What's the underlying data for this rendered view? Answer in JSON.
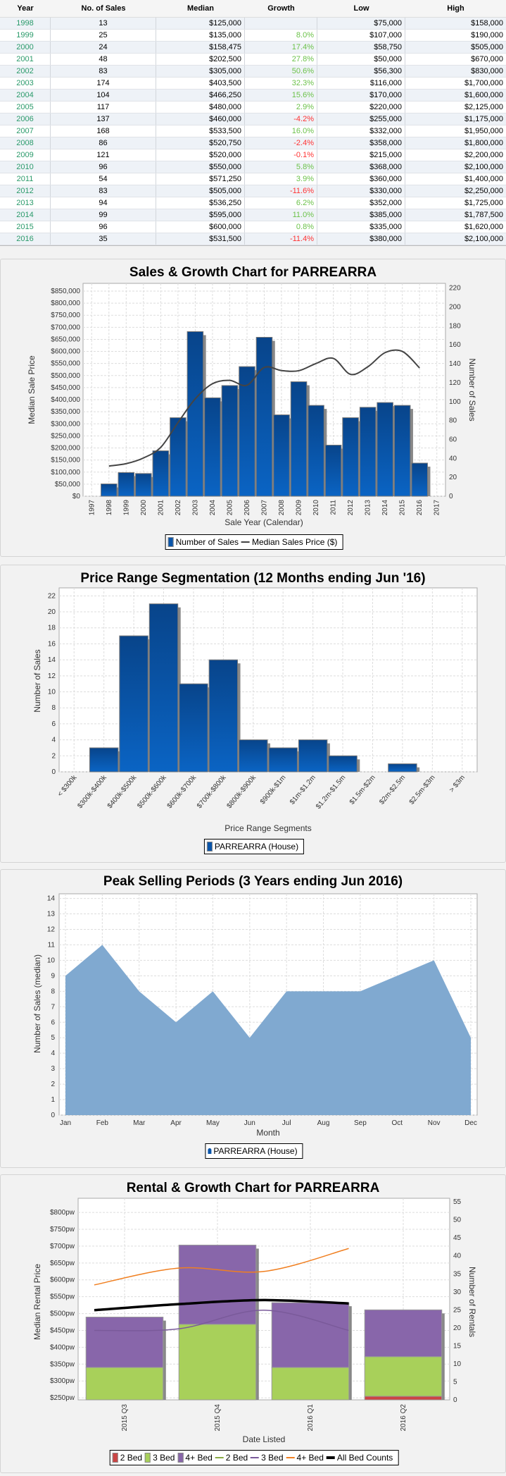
{
  "table": {
    "headers": [
      "Year",
      "No. of Sales",
      "Median",
      "Growth",
      "Low",
      "High"
    ],
    "rows": [
      {
        "year": "1998",
        "sales": "13",
        "median": "$125,000",
        "growth": "",
        "low": "$75,000",
        "high": "$158,000"
      },
      {
        "year": "1999",
        "sales": "25",
        "median": "$135,000",
        "growth": "8.0%",
        "low": "$107,000",
        "high": "$190,000"
      },
      {
        "year": "2000",
        "sales": "24",
        "median": "$158,475",
        "growth": "17.4%",
        "low": "$58,750",
        "high": "$505,000"
      },
      {
        "year": "2001",
        "sales": "48",
        "median": "$202,500",
        "growth": "27.8%",
        "low": "$50,000",
        "high": "$670,000"
      },
      {
        "year": "2002",
        "sales": "83",
        "median": "$305,000",
        "growth": "50.6%",
        "low": "$56,300",
        "high": "$830,000"
      },
      {
        "year": "2003",
        "sales": "174",
        "median": "$403,500",
        "growth": "32.3%",
        "low": "$116,000",
        "high": "$1,700,000"
      },
      {
        "year": "2004",
        "sales": "104",
        "median": "$466,250",
        "growth": "15.6%",
        "low": "$170,000",
        "high": "$1,600,000"
      },
      {
        "year": "2005",
        "sales": "117",
        "median": "$480,000",
        "growth": "2.9%",
        "low": "$220,000",
        "high": "$2,125,000"
      },
      {
        "year": "2006",
        "sales": "137",
        "median": "$460,000",
        "growth": "-4.2%",
        "low": "$255,000",
        "high": "$1,175,000"
      },
      {
        "year": "2007",
        "sales": "168",
        "median": "$533,500",
        "growth": "16.0%",
        "low": "$332,000",
        "high": "$1,950,000"
      },
      {
        "year": "2008",
        "sales": "86",
        "median": "$520,750",
        "growth": "-2.4%",
        "low": "$358,000",
        "high": "$1,800,000"
      },
      {
        "year": "2009",
        "sales": "121",
        "median": "$520,000",
        "growth": "-0.1%",
        "low": "$215,000",
        "high": "$2,200,000"
      },
      {
        "year": "2010",
        "sales": "96",
        "median": "$550,000",
        "growth": "5.8%",
        "low": "$368,000",
        "high": "$2,100,000"
      },
      {
        "year": "2011",
        "sales": "54",
        "median": "$571,250",
        "growth": "3.9%",
        "low": "$360,000",
        "high": "$1,400,000"
      },
      {
        "year": "2012",
        "sales": "83",
        "median": "$505,000",
        "growth": "-11.6%",
        "low": "$330,000",
        "high": "$2,250,000"
      },
      {
        "year": "2013",
        "sales": "94",
        "median": "$536,250",
        "growth": "6.2%",
        "low": "$352,000",
        "high": "$1,725,000"
      },
      {
        "year": "2014",
        "sales": "99",
        "median": "$595,000",
        "growth": "11.0%",
        "low": "$385,000",
        "high": "$1,787,500"
      },
      {
        "year": "2015",
        "sales": "96",
        "median": "$600,000",
        "growth": "0.8%",
        "low": "$335,000",
        "high": "$1,620,000"
      },
      {
        "year": "2016",
        "sales": "35",
        "median": "$531,500",
        "growth": "-11.4%",
        "low": "$380,000",
        "high": "$2,100,000"
      }
    ]
  },
  "colors": {
    "year": "#2a9a6a",
    "growth_pos": "#6cc24a",
    "growth_neg": "#ff3333",
    "bar_top": "#08448a",
    "bar_bottom": "#0a64c4",
    "area": "#80a9d0",
    "bed2": "#cc4444",
    "bed3": "#a8d05a",
    "bed4": "#8866aa",
    "line2": "#88aa44",
    "line3": "#7a5a9a",
    "line4": "#f07f20",
    "line_all": "#000000"
  },
  "chart_data": [
    {
      "type": "bar+line",
      "title": "Sales & Growth Chart for PARREARRA",
      "xlabel": "Sale Year (Calendar)",
      "ylabel_left": "Median Sale Price",
      "ylabel_right": "Number of Sales",
      "categories": [
        "1997",
        "1998",
        "1999",
        "2000",
        "2001",
        "2002",
        "2003",
        "2004",
        "2005",
        "2006",
        "2007",
        "2008",
        "2009",
        "2010",
        "2011",
        "2012",
        "2013",
        "2014",
        "2015",
        "2016",
        "2017"
      ],
      "series": [
        {
          "name": "Number of Sales",
          "axis": "right",
          "values": [
            null,
            13,
            25,
            24,
            48,
            83,
            174,
            104,
            117,
            137,
            168,
            86,
            121,
            96,
            54,
            83,
            94,
            99,
            96,
            35,
            null
          ]
        },
        {
          "name": "Median Sales Price ($)",
          "axis": "left",
          "values": [
            null,
            125000,
            135000,
            158475,
            202500,
            305000,
            403500,
            466250,
            480000,
            460000,
            533500,
            520750,
            520000,
            550000,
            571250,
            505000,
            536250,
            595000,
            600000,
            531500,
            null
          ]
        }
      ],
      "ylim_left": [
        0,
        882000
      ],
      "ylim_right": [
        0,
        225
      ],
      "yticks_left": [
        0,
        50000,
        100000,
        150000,
        200000,
        250000,
        300000,
        350000,
        400000,
        450000,
        500000,
        550000,
        600000,
        650000,
        700000,
        750000,
        800000,
        850000
      ],
      "yticks_right": [
        0,
        20,
        40,
        60,
        80,
        100,
        120,
        140,
        160,
        180,
        200,
        220
      ],
      "legend": [
        "Number of Sales",
        "Median Sales Price ($)"
      ],
      "legend_position": "bottom",
      "grid": true
    },
    {
      "type": "bar",
      "title": "Price Range Segmentation (12 Months ending Jun '16)",
      "xlabel": "Price Range Segments",
      "ylabel": "Number of Sales",
      "categories": [
        "< $300k",
        "$300k-$400k",
        "$400k-$500k",
        "$500k-$600k",
        "$600k-$700k",
        "$700k-$800k",
        "$800k-$900k",
        "$900k-$1m",
        "$1m-$1.2m",
        "$1.2m-$1.5m",
        "$1.5m-$2m",
        "$2m-$2.5m",
        "$2.5m-$3m",
        "> $3m"
      ],
      "values": [
        0,
        3,
        17,
        21,
        11,
        14,
        4,
        3,
        4,
        2,
        0,
        1,
        0,
        0
      ],
      "ylim": [
        0,
        23
      ],
      "yticks": [
        0,
        2,
        4,
        6,
        8,
        10,
        12,
        14,
        16,
        18,
        20,
        22
      ],
      "legend": [
        "PARREARRA (House)"
      ],
      "legend_position": "bottom",
      "grid": true
    },
    {
      "type": "area",
      "title": "Peak Selling Periods (3 Years ending Jun 2016)",
      "xlabel": "Month",
      "ylabel": "Number of Sales (median)",
      "categories": [
        "Jan",
        "Feb",
        "Mar",
        "Apr",
        "May",
        "Jun",
        "Jul",
        "Aug",
        "Sep",
        "Oct",
        "Nov",
        "Dec"
      ],
      "values": [
        9,
        11,
        8,
        6,
        8,
        5,
        8,
        8,
        8,
        9,
        10,
        5
      ],
      "ylim": [
        0,
        14.3
      ],
      "yticks": [
        0,
        1,
        2,
        3,
        4,
        5,
        6,
        7,
        8,
        9,
        10,
        11,
        12,
        13,
        14
      ],
      "legend": [
        "PARREARRA (House)"
      ],
      "legend_position": "bottom",
      "grid": true
    },
    {
      "type": "stacked-bar+line",
      "title": "Rental & Growth Chart for PARREARRA",
      "xlabel": "Date Listed",
      "ylabel_left": "Median Rental Price",
      "ylabel_right": "Number of Rentals",
      "categories": [
        "2015 Q3",
        "2015 Q4",
        "2016 Q1",
        "2016 Q2"
      ],
      "bars": [
        {
          "name": "2 Bed",
          "values": [
            0,
            0,
            0,
            1
          ]
        },
        {
          "name": "3 Bed",
          "values": [
            9,
            21,
            9,
            11
          ]
        },
        {
          "name": "4+ Bed",
          "values": [
            14,
            22,
            18,
            13
          ]
        }
      ],
      "lines": [
        {
          "name": "2 Bed",
          "values": []
        },
        {
          "name": "3 Bed",
          "values": [
            450,
            455,
            510,
            450
          ]
        },
        {
          "name": "4+ Bed",
          "values": [
            585,
            635,
            625,
            693
          ]
        },
        {
          "name": "All Bed Counts",
          "values": [
            510,
            528,
            540,
            530
          ]
        }
      ],
      "ylim_left": [
        244,
        842
      ],
      "ylim_right": [
        0,
        56
      ],
      "yticks_left": [
        250,
        300,
        350,
        400,
        450,
        500,
        550,
        600,
        650,
        700,
        750,
        800
      ],
      "yticks_right": [
        0,
        5,
        10,
        15,
        20,
        25,
        30,
        35,
        40,
        45,
        50,
        55
      ],
      "legend": [
        "2 Bed",
        "3 Bed",
        "4+ Bed",
        "2 Bed",
        "3 Bed",
        "4+ Bed",
        "All Bed Counts"
      ],
      "legend_position": "bottom",
      "grid": true
    }
  ]
}
